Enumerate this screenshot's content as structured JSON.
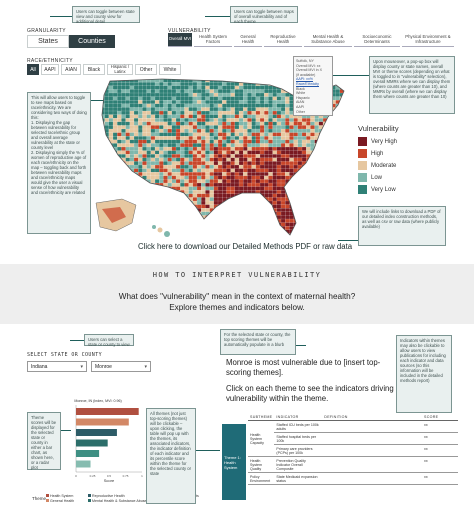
{
  "granularity": {
    "label": "GRANULARITY",
    "options": [
      "States",
      "Counties"
    ],
    "selected": "Counties",
    "note": "Users can toggle between state view and county view for additional detail"
  },
  "vulnerability": {
    "label": "VULNERABILITY",
    "tabs": [
      "Overall MVI",
      "Health System Factors",
      "General Health",
      "Reproductive Health",
      "Mental Health & Substance Abuse",
      "Socioeconomic Determinants",
      "Physical Environment & Infrastructure"
    ],
    "selected": "Overall MVI",
    "note": "Users can toggle between maps of overall vulnerability and of each theme"
  },
  "race": {
    "label": "RACE/ETHNICITY",
    "options": [
      "All",
      "AAPI",
      "AIAN",
      "Black",
      "Hispanic / Latinx",
      "Other",
      "White"
    ],
    "selected": "All",
    "note": "This will allow users to toggle to see maps based on race/ethnicity. We are considering two ways of doing this:\n1. Displaying the gap between vulnerability for selected race/ethnic group and overall average vulnerability at the state or county level\n2. Displaying simply the % of women of reproductive age of each race/ethnicity on the map – toggling back and forth between vulnerability maps and race/ethnicity maps would give the user a visual sense of how vulnerability and race/ethnicity are related"
  },
  "popup": {
    "lines": [
      "Suffolk, NY",
      "Overall MVI: xx",
      "Overall MVI in X",
      "(if available)",
      "AAPI: xx% Race/Ethnicity",
      "Black",
      "White",
      "Hispanic",
      "AIAN",
      "AAPI",
      "Other"
    ],
    "note": "Upon mouseover, a pop-up box will display county or state names, overall MVI or theme scores (depending on what is toggled to in \"vulnerability\" selection), overall MMRs where we can display them (where counts are greater than 10), and MMRs by overall (where we can display them where counts are greater than 10)"
  },
  "legend": {
    "title": "Vulnerability",
    "items": [
      {
        "label": "Very High",
        "color": "#7a1a22"
      },
      {
        "label": "High",
        "color": "#c8462a"
      },
      {
        "label": "Moderate",
        "color": "#e6c7a0"
      },
      {
        "label": "Low",
        "color": "#7fb7ac"
      },
      {
        "label": "Very Low",
        "color": "#2f8076"
      }
    ]
  },
  "download": {
    "text": "Click here to download our Detailed Methods PDF or raw data",
    "note": "We will include links to download a PDF of our detailed index construction methods, as well as csv or raw data (where publicly available)"
  },
  "interpret": {
    "heading": "HOW TO INTERPRET VULNERABILITY",
    "question": "What does \"vulnerability\" mean in the context of maternal health?",
    "sub": "Explore themes and indicators below."
  },
  "select": {
    "label": "SELECT STATE OR COUNTY",
    "state": "Indiana",
    "county": "Monroe",
    "note": "Users can select a state or county to view"
  },
  "summary": {
    "note": "For the selected state or county, the top scoring themes will be automatically populate in a blurb",
    "text": "Monroe is most vulnerable due to [insert top-scoring themes].",
    "click_text": "Click on each theme to see the indicators driving vulnerability within the theme."
  },
  "indicator_note": "Indicators within themes may also be clickable to allow users to view publications for including each indicator and data sources (so this information will be included in the detailed methods report)",
  "bar_chart": {
    "title": "Monroe, IN (Index, MVI: 0.96)",
    "xlabel": "Score",
    "legend_title": "Theme",
    "note": "Theme scores will be displayed for the selected state or county in either a bar chart, as shown here, or a radar plot",
    "click_note": "All themes (not just top-scoring themes) will be clickable – upon clicking, the table will pop up with the themes, its associated indicators, the indicator definition of each indicator and its percentile score within the theme for the selected county or state",
    "themes": [
      "Health System",
      "General Health",
      "Reproductive Health",
      "Mental Health & Substance Abuse",
      "Socioeconomic Determinants",
      "Physical Environment"
    ]
  },
  "chart_data": {
    "type": "bar",
    "categories": [
      "Health System",
      "General Health",
      "Reproductive Health",
      "Mental Health & Substance Abuse",
      "Socioeconomic Determinants",
      "Physical Environment"
    ],
    "values": [
      0.95,
      0.8,
      0.62,
      0.48,
      0.35,
      0.22
    ],
    "colors": [
      "#b04f3f",
      "#d38866",
      "#2d5c67",
      "#2c6e6a",
      "#3e8f83",
      "#86bcb0"
    ],
    "title": "Monroe, IN (Index, MVI: 0.96)",
    "xlabel": "Score",
    "ylabel": "",
    "xlim": [
      0,
      1
    ]
  },
  "table": {
    "headers": [
      "SUBTHEME",
      "INDICATOR",
      "DEFINITION",
      "SCORE"
    ],
    "theme": "Theme 1: Health System",
    "rows": [
      {
        "subtheme": "Health System Capacity",
        "indicator": "Staffed ICU beds per 100k adults",
        "definition": "",
        "score": "xx"
      },
      {
        "subtheme": "",
        "indicator": "Staffed hospital beds per 100k",
        "definition": "",
        "score": "xx"
      },
      {
        "subtheme": "",
        "indicator": "Primary care providers (PCPs) per 100k",
        "definition": "",
        "score": "xx"
      },
      {
        "subtheme": "Health System Quality",
        "indicator": "Prevention Quality Indicator Overall Composite",
        "definition": "",
        "score": "xx"
      },
      {
        "subtheme": "Policy Environment",
        "indicator": "State Medicaid expansion status",
        "definition": "",
        "score": "xx"
      }
    ]
  }
}
